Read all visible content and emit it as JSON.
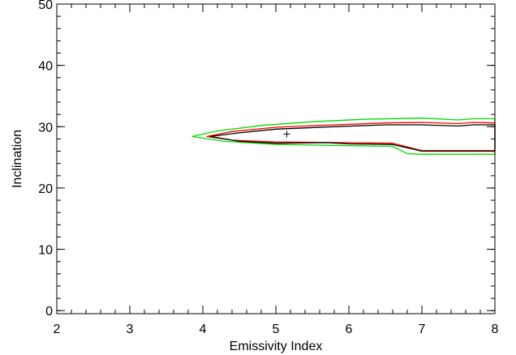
{
  "chart_data": {
    "type": "line",
    "title": "",
    "xlabel": "Emissivity Index",
    "ylabel": "Inclination",
    "xlim": [
      2,
      8
    ],
    "ylim": [
      -0.5,
      50
    ],
    "xticks": [
      2,
      3,
      4,
      5,
      6,
      7,
      8
    ],
    "yticks": [
      0,
      10,
      20,
      30,
      40,
      50
    ],
    "x_minor_step": 0.2,
    "y_minor_step": 2,
    "grid": false,
    "legend": "none",
    "series": [
      {
        "color": "#00dd00",
        "points": [
          [
            3.85,
            28.4
          ],
          [
            4.2,
            29.3
          ],
          [
            4.8,
            30.2
          ],
          [
            5.5,
            30.8
          ],
          [
            6.2,
            31.2
          ],
          [
            7.0,
            31.4
          ],
          [
            7.5,
            31.1
          ],
          [
            7.7,
            31.3
          ],
          [
            8.0,
            31.3
          ],
          [
            8.0,
            25.5
          ],
          [
            7.0,
            25.5
          ],
          [
            6.8,
            25.6
          ],
          [
            6.6,
            26.8
          ],
          [
            6.0,
            26.9
          ],
          [
            5.0,
            27.1
          ],
          [
            4.3,
            27.6
          ],
          [
            3.85,
            28.4
          ]
        ]
      },
      {
        "color": "#ff0000",
        "points": [
          [
            4.05,
            28.4
          ],
          [
            4.4,
            29.2
          ],
          [
            5.0,
            29.9
          ],
          [
            5.8,
            30.3
          ],
          [
            6.5,
            30.6
          ],
          [
            7.0,
            30.7
          ],
          [
            7.5,
            30.5
          ],
          [
            7.7,
            30.7
          ],
          [
            8.0,
            30.6
          ],
          [
            8.0,
            26.1
          ],
          [
            7.0,
            26.1
          ],
          [
            6.6,
            27.3
          ],
          [
            6.0,
            27.4
          ],
          [
            5.0,
            27.5
          ],
          [
            4.4,
            27.8
          ],
          [
            4.05,
            28.4
          ]
        ]
      },
      {
        "color": "#000000",
        "points": [
          [
            4.1,
            28.4
          ],
          [
            4.5,
            29.0
          ],
          [
            5.0,
            29.6
          ],
          [
            5.8,
            30.0
          ],
          [
            6.5,
            30.3
          ],
          [
            7.0,
            30.3
          ],
          [
            7.5,
            30.1
          ],
          [
            7.7,
            30.3
          ],
          [
            8.0,
            30.3
          ],
          [
            8.0,
            26.0
          ],
          [
            7.0,
            26.0
          ],
          [
            6.6,
            27.1
          ],
          [
            6.0,
            27.2
          ],
          [
            5.7,
            27.4
          ],
          [
            5.0,
            27.3
          ],
          [
            4.5,
            27.6
          ],
          [
            4.1,
            28.4
          ]
        ]
      }
    ],
    "marker": {
      "symbol": "+",
      "x": 5.15,
      "y": 28.8,
      "color": "#000000"
    }
  }
}
